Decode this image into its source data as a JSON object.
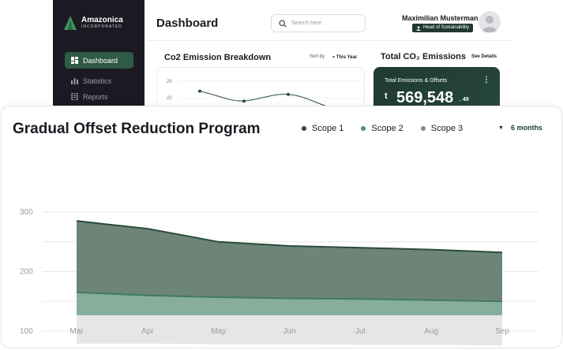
{
  "app": {
    "brand_name": "Amazonica",
    "brand_sub": "INCORPORATED"
  },
  "sidebar": {
    "items": [
      {
        "label": "Dashboard",
        "icon": "grid-icon",
        "active": true
      },
      {
        "label": "Statistics",
        "icon": "bar-chart-icon",
        "active": false
      },
      {
        "label": "Reports",
        "icon": "document-icon",
        "active": false
      }
    ]
  },
  "header": {
    "title": "Dashboard",
    "search_placeholder": "Search here",
    "user_name": "Maximilian Musterman",
    "user_role": "Head of Sustainability"
  },
  "emission_panel": {
    "title": "Co2 Emission Breakdown",
    "sort_label": "Sort by",
    "sort_value": "This Year",
    "y_ticks": [
      "25",
      "20"
    ],
    "mini_series": [
      22,
      19,
      21,
      17
    ]
  },
  "total_panel": {
    "title": "Total CO₂ Emissions",
    "see_details": "See Details",
    "card_label": "Total Emissions & Offsets",
    "unit": "t",
    "value": "569,548",
    "decimal": ". 49"
  },
  "offset_card": {
    "title": "Gradual Offset Reduction Program",
    "range": "6 months",
    "legend": [
      {
        "name": "Scope 1",
        "color": "#2b4b3a"
      },
      {
        "name": "Scope 2",
        "color": "#4f8f74"
      },
      {
        "name": "Scope 3",
        "color": "#8a8a8a"
      }
    ]
  },
  "chart_data": {
    "type": "area",
    "categories": [
      "Mar",
      "Apr",
      "May",
      "Jun",
      "Jul",
      "Aug",
      "Sep"
    ],
    "y_ticks": [
      "300",
      "200",
      "100"
    ],
    "ylim": [
      50,
      310
    ],
    "series": [
      {
        "name": "Scope 1",
        "values": [
          285,
          272,
          250,
          243,
          240,
          237,
          232
        ],
        "color": "#6d8577"
      },
      {
        "name": "Scope 2",
        "values": [
          165,
          160,
          157,
          155,
          154,
          152,
          150
        ],
        "color": "#87ae9d"
      },
      {
        "name": "Scope 3",
        "values": [
          79,
          79,
          78,
          78,
          77,
          77,
          76
        ],
        "color": "#e6e6e6"
      }
    ],
    "grid": true,
    "legend_position": "top-right"
  }
}
